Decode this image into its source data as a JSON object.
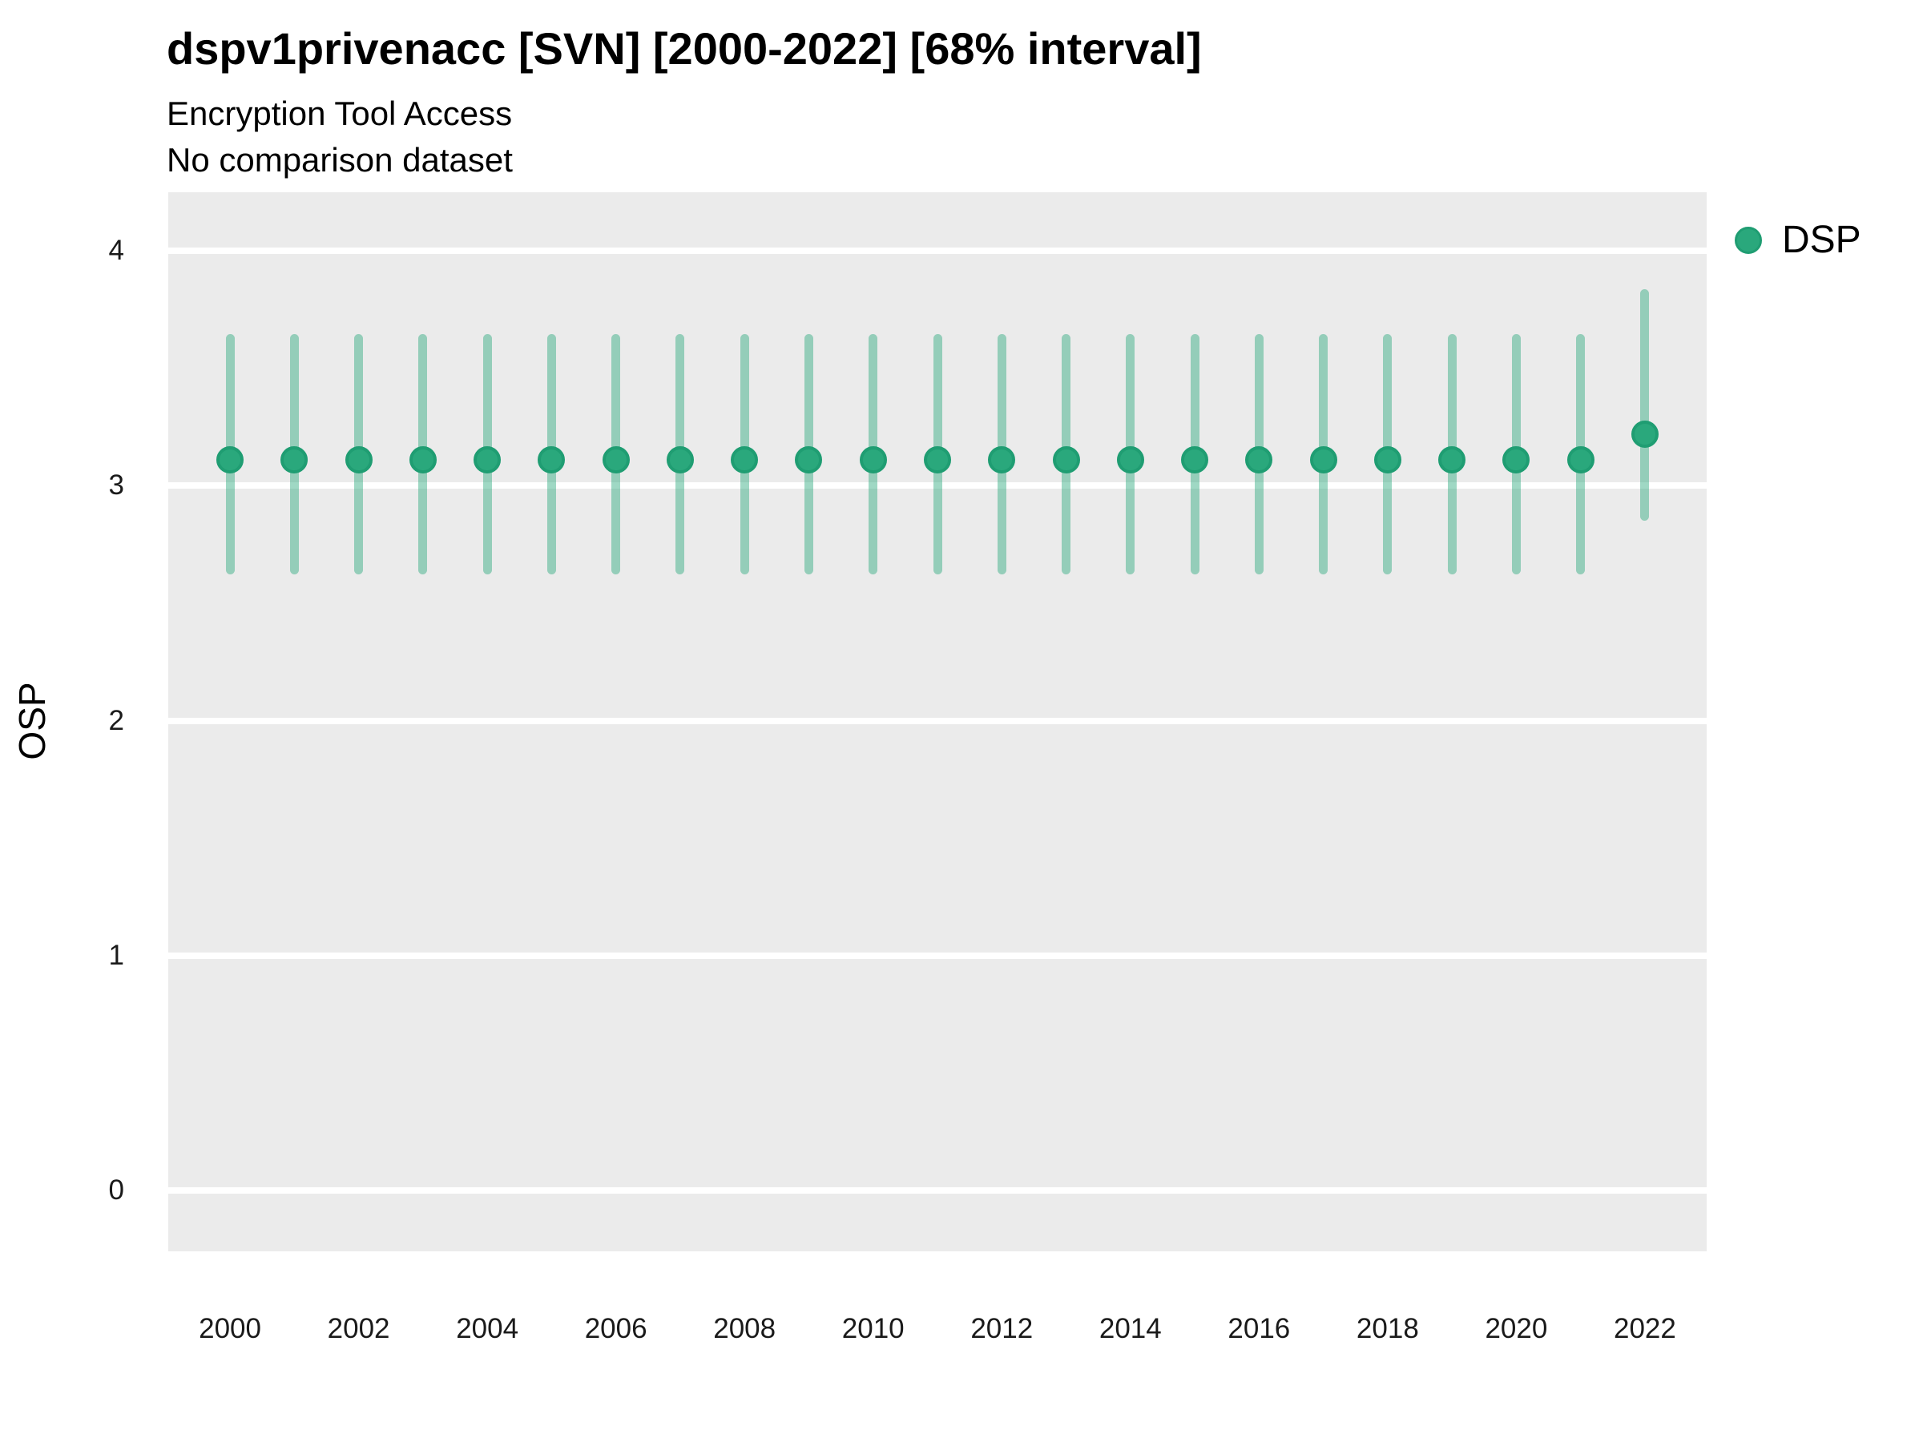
{
  "header": {
    "title": "dspv1privenacc [SVN] [2000-2022] [68% interval]",
    "subtitle": "Encryption Tool Access",
    "note": "No comparison dataset"
  },
  "y_axis_title": "OSP",
  "legend": {
    "position": "right",
    "items": [
      {
        "label": "DSP",
        "color": "#2aa87c"
      }
    ]
  },
  "colors": {
    "panel_bg": "#ebebeb",
    "gridline": "#ffffff",
    "point_fill": "#2aa87c",
    "point_stroke": "#1f9d72",
    "interval_bar": "rgba(42,168,124,0.45)",
    "tick_text": "#1a1a1a"
  },
  "chart_data": {
    "type": "pointrange",
    "title": "dspv1privenacc [SVN] [2000-2022] [68% interval]",
    "subtitle": "Encryption Tool Access",
    "annotation": "No comparison dataset",
    "xlabel": "",
    "ylabel": "OSP",
    "interval_level": "68%",
    "grid": "horizontal-major-only",
    "legend_position": "right",
    "ylim": [
      -0.26,
      4.25
    ],
    "yticks": [
      0,
      1,
      2,
      3,
      4
    ],
    "xticks": [
      2000,
      2002,
      2004,
      2006,
      2008,
      2010,
      2012,
      2014,
      2016,
      2018,
      2020,
      2022
    ],
    "xlim": [
      1999.04,
      2022.96
    ],
    "series": [
      {
        "name": "DSP",
        "x": [
          2000,
          2001,
          2002,
          2003,
          2004,
          2005,
          2006,
          2007,
          2008,
          2009,
          2010,
          2011,
          2012,
          2013,
          2014,
          2015,
          2016,
          2017,
          2018,
          2019,
          2020,
          2021,
          2022
        ],
        "mid": [
          3.11,
          3.11,
          3.11,
          3.11,
          3.11,
          3.11,
          3.11,
          3.11,
          3.11,
          3.11,
          3.11,
          3.11,
          3.11,
          3.11,
          3.11,
          3.11,
          3.11,
          3.11,
          3.11,
          3.11,
          3.11,
          3.11,
          3.22
        ],
        "lo": [
          2.64,
          2.64,
          2.64,
          2.64,
          2.64,
          2.64,
          2.64,
          2.64,
          2.64,
          2.64,
          2.64,
          2.64,
          2.64,
          2.64,
          2.64,
          2.64,
          2.64,
          2.64,
          2.64,
          2.64,
          2.64,
          2.64,
          2.87
        ],
        "hi": [
          3.63,
          3.63,
          3.63,
          3.63,
          3.63,
          3.63,
          3.63,
          3.63,
          3.63,
          3.63,
          3.63,
          3.63,
          3.63,
          3.63,
          3.63,
          3.63,
          3.63,
          3.63,
          3.63,
          3.63,
          3.63,
          3.63,
          3.82
        ]
      }
    ]
  }
}
